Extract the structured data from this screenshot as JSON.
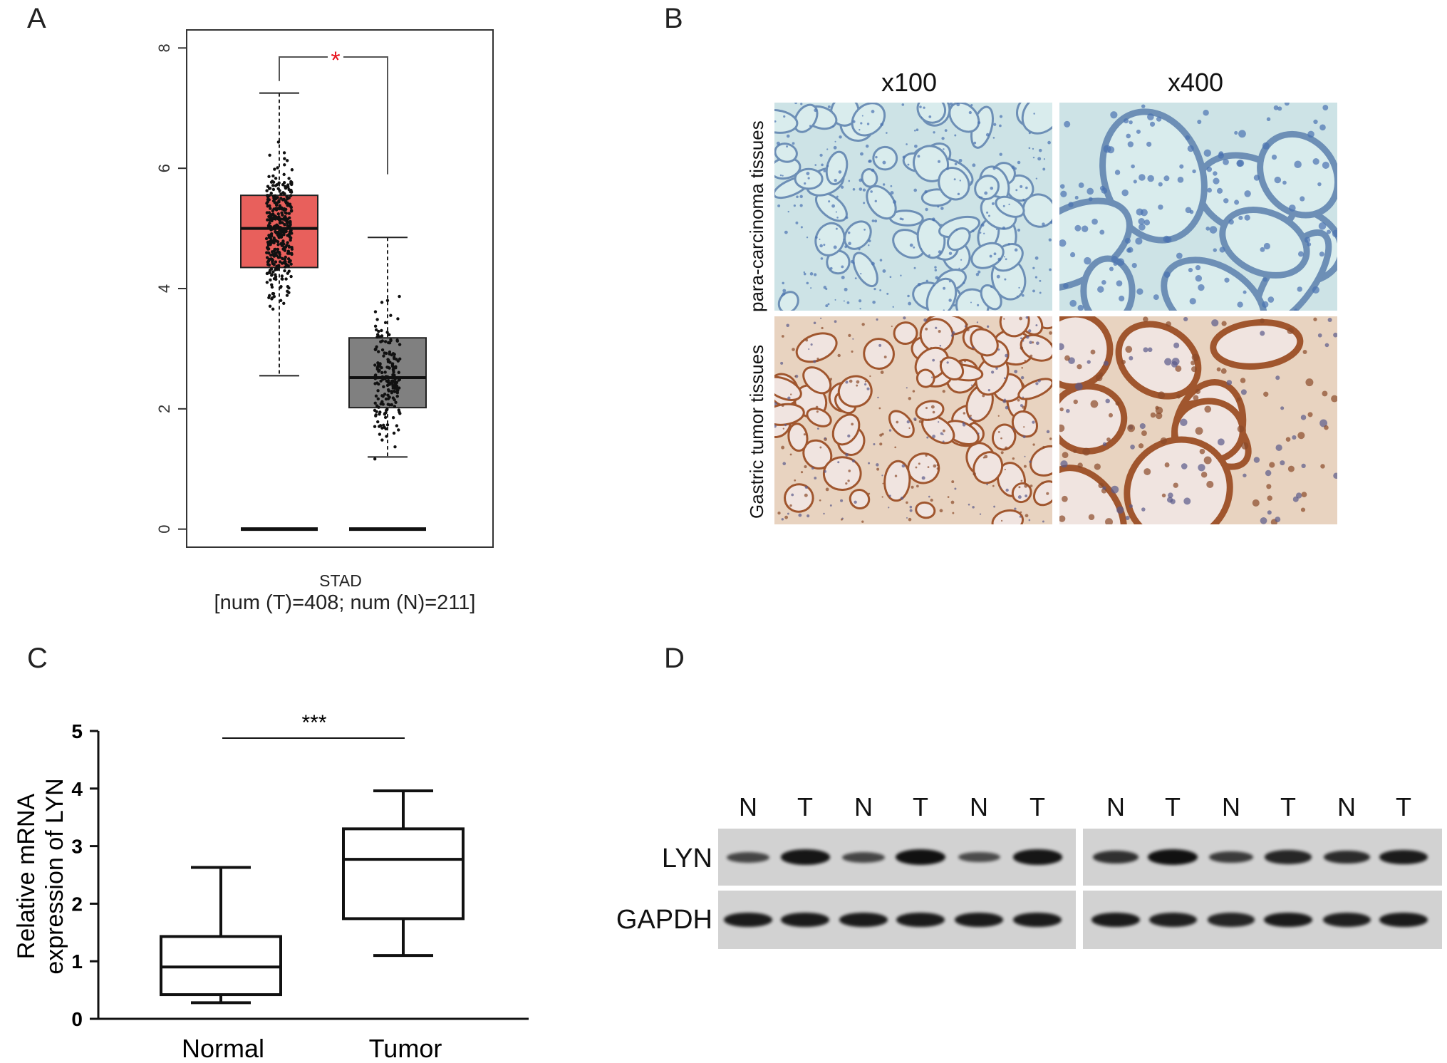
{
  "panels": {
    "a": "A",
    "b": "B",
    "c": "C",
    "d": "D"
  },
  "chart_data": [
    {
      "type": "box",
      "panel": "A",
      "title": "",
      "xlabel": "STAD",
      "subtitle": "[num (T)=408; num (N)=211]",
      "ylabel": "",
      "ylim": [
        -0.3,
        8.3
      ],
      "yticks": [
        "0",
        "2",
        "4",
        "6",
        "8"
      ],
      "significance": "*",
      "significance_color": "#e8141e",
      "series": [
        {
          "group": "T",
          "n": 408,
          "color": "#e8605c",
          "whisker_low": 2.55,
          "q1": 4.35,
          "median": 5.0,
          "q3": 5.55,
          "whisker_high": 7.25,
          "zero_values": true
        },
        {
          "group": "N",
          "n": 211,
          "color": "#808080",
          "whisker_low": 1.2,
          "q1": 2.02,
          "median": 2.52,
          "q3": 3.18,
          "whisker_high": 4.85,
          "zero_values": true
        }
      ]
    },
    {
      "type": "box",
      "panel": "C",
      "title": "",
      "categories": [
        "Normal",
        "Tumor"
      ],
      "ylabel_line1": "Relative mRNA",
      "ylabel_line2": "expression of LYN",
      "ylim": [
        0,
        5
      ],
      "yticks": [
        "0",
        "1",
        "2",
        "3",
        "4",
        "5"
      ],
      "significance": "***",
      "series": [
        {
          "group": "Normal",
          "min": 0.28,
          "q1": 0.42,
          "median": 0.9,
          "q3": 1.43,
          "max": 2.63
        },
        {
          "group": "Tumor",
          "min": 1.1,
          "q1": 1.74,
          "median": 2.77,
          "q3": 3.3,
          "max": 3.96
        }
      ]
    }
  ],
  "ihc": {
    "columns": [
      "x100",
      "x400"
    ],
    "rows": [
      "para-carcinoma tissues",
      "Gastric tumor tissues"
    ]
  },
  "western_blot": {
    "lanes": [
      "N",
      "T",
      "N",
      "T",
      "N",
      "T",
      "N",
      "T",
      "N",
      "T",
      "N",
      "T"
    ],
    "rows": [
      {
        "label": "LYN",
        "intensity": [
          0.5,
          0.95,
          0.5,
          1.0,
          0.45,
          0.95,
          0.7,
          1.0,
          0.6,
          0.8,
          0.75,
          0.9
        ]
      },
      {
        "label": "GAPDH",
        "intensity": [
          0.9,
          0.9,
          0.9,
          0.9,
          0.9,
          0.9,
          0.9,
          0.85,
          0.8,
          0.9,
          0.85,
          0.9
        ]
      }
    ]
  }
}
